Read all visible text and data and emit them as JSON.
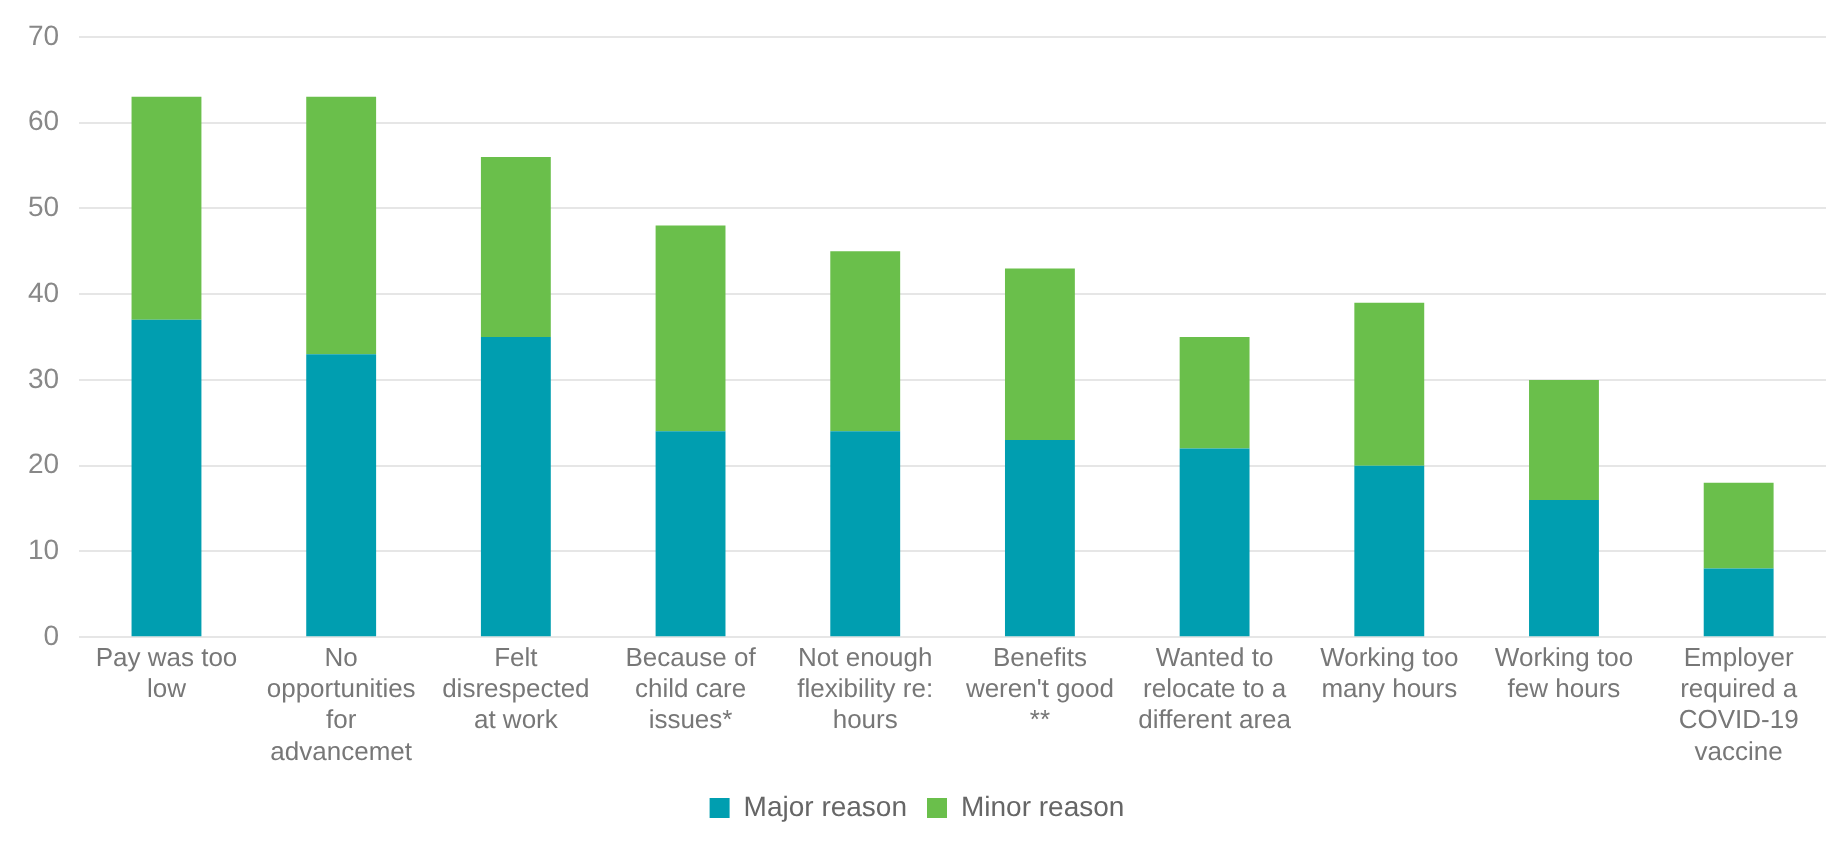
{
  "chart_data": {
    "type": "bar",
    "stacked": true,
    "categories": [
      "Pay was too low",
      "No opportunities for advancemet",
      "Felt disrespected at work",
      "Because of child care issues*",
      "Not enough flexibility re: hours",
      "Benefits weren't good **",
      "Wanted to relocate to a different area",
      "Working too many hours",
      "Working too few hours",
      "Employer required a COVID-19 vaccine"
    ],
    "series": [
      {
        "name": "Major reason",
        "color": "#009eb0",
        "values": [
          37,
          33,
          35,
          24,
          24,
          23,
          22,
          20,
          16,
          8
        ]
      },
      {
        "name": "Minor reason",
        "color": "#6abf4b",
        "values": [
          26,
          30,
          21,
          24,
          21,
          20,
          13,
          19,
          14,
          10
        ]
      }
    ],
    "ylim": [
      0,
      70
    ],
    "yticks": [
      0,
      10,
      20,
      30,
      40,
      50,
      60,
      70
    ],
    "grid": "y",
    "legend": "bottom"
  }
}
